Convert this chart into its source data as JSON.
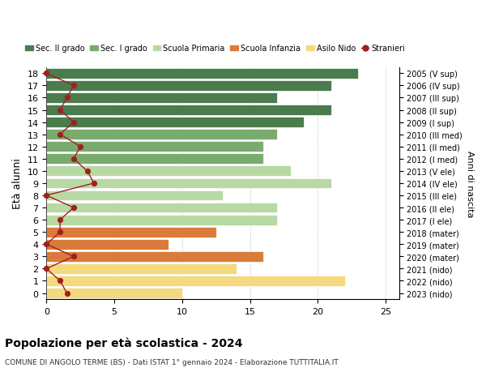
{
  "ages": [
    0,
    1,
    2,
    3,
    4,
    5,
    6,
    7,
    8,
    9,
    10,
    11,
    12,
    13,
    14,
    15,
    16,
    17,
    18
  ],
  "right_labels": [
    "2023 (nido)",
    "2022 (nido)",
    "2021 (nido)",
    "2020 (mater)",
    "2019 (mater)",
    "2018 (mater)",
    "2017 (I ele)",
    "2016 (II ele)",
    "2015 (III ele)",
    "2014 (IV ele)",
    "2013 (V ele)",
    "2012 (I med)",
    "2011 (II med)",
    "2010 (III med)",
    "2009 (I sup)",
    "2008 (II sup)",
    "2007 (III sup)",
    "2006 (IV sup)",
    "2005 (V sup)"
  ],
  "bar_values": [
    10,
    22,
    14,
    16,
    9,
    12.5,
    17,
    17,
    13,
    21,
    18,
    16,
    16,
    17,
    19,
    21,
    17,
    21,
    23
  ],
  "bar_colors": [
    "#f5d97e",
    "#f5d97e",
    "#f5d97e",
    "#d97b3a",
    "#d97b3a",
    "#d97b3a",
    "#b8d9a3",
    "#b8d9a3",
    "#b8d9a3",
    "#b8d9a3",
    "#b8d9a3",
    "#7aab6e",
    "#7aab6e",
    "#7aab6e",
    "#4a7c4e",
    "#4a7c4e",
    "#4a7c4e",
    "#4a7c4e",
    "#4a7c4e"
  ],
  "stranieri_values": [
    1.5,
    1,
    0,
    2,
    0,
    1,
    1,
    2,
    0,
    3.5,
    3,
    2,
    2.5,
    1,
    2,
    1,
    1.5,
    2,
    0
  ],
  "legend_labels": [
    "Sec. II grado",
    "Sec. I grado",
    "Scuola Primaria",
    "Scuola Infanzia",
    "Asilo Nido",
    "Stranieri"
  ],
  "legend_colors": [
    "#4a7c4e",
    "#7aab6e",
    "#b8d9a3",
    "#d97b3a",
    "#f5d97e",
    "#a02020"
  ],
  "ylabel": "Età alunni",
  "right_ylabel": "Anni di nascita",
  "title": "Popolazione per età scolastica - 2024",
  "subtitle": "COMUNE DI ANGOLO TERME (BS) - Dati ISTAT 1° gennaio 2024 - Elaborazione TUTTITALIA.IT",
  "xlim": [
    0,
    26
  ],
  "xticks": [
    0,
    5,
    10,
    15,
    20,
    25
  ],
  "bg_color": "#ffffff",
  "bar_edge_color": "#ffffff",
  "grid_color": "#cccccc"
}
